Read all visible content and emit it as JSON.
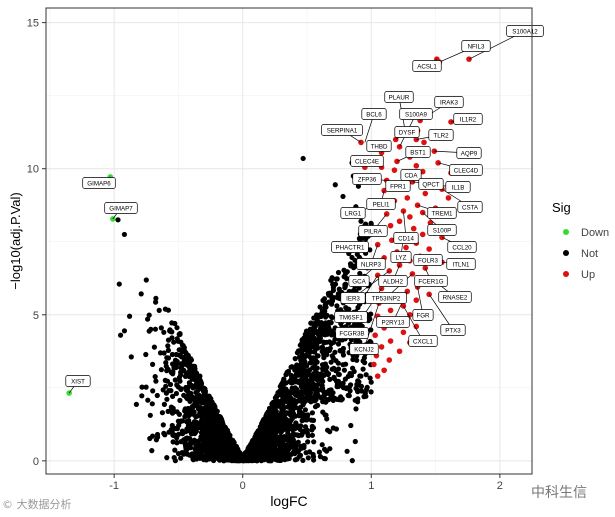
{
  "chart_data": {
    "type": "scatter",
    "title": "",
    "xlabel": "logFC",
    "ylabel": "−log10(adj.P.Val)",
    "xlim": [
      -1.53,
      2.25
    ],
    "ylim": [
      -0.45,
      15.5
    ],
    "x_ticks": [
      -1,
      0,
      1,
      2
    ],
    "x_tick_labels": [
      "-1",
      "0",
      "1",
      "2"
    ],
    "y_ticks": [
      0,
      5,
      10,
      15
    ],
    "y_tick_labels": [
      "0",
      "5",
      "10",
      "15"
    ],
    "grid": true,
    "legend": {
      "title": "Sig",
      "position": "right",
      "entries": [
        {
          "name": "Down",
          "color": "#33dd33"
        },
        {
          "name": "Not",
          "color": "#000000"
        },
        {
          "name": "Up",
          "color": "#dd1111"
        }
      ]
    },
    "series": [
      {
        "name": "Down",
        "color": "#33dd33",
        "points": [
          {
            "x": -1.03,
            "y": 9.72
          },
          {
            "x": -1.01,
            "y": 8.28
          },
          {
            "x": -1.35,
            "y": 2.32
          }
        ]
      },
      {
        "name": "Up",
        "color": "#dd1111",
        "points": [
          {
            "x": 1.51,
            "y": 13.75
          },
          {
            "x": 1.76,
            "y": 13.75
          },
          {
            "x": 1.53,
            "y": 13.65
          },
          {
            "x": 1.38,
            "y": 11.65
          },
          {
            "x": 1.62,
            "y": 11.6
          },
          {
            "x": 1.36,
            "y": 11.3
          },
          {
            "x": 1.27,
            "y": 11.15
          },
          {
            "x": 1.35,
            "y": 11.0
          },
          {
            "x": 1.41,
            "y": 10.9
          },
          {
            "x": 1.19,
            "y": 11.0
          },
          {
            "x": 0.92,
            "y": 10.9
          },
          {
            "x": 1.22,
            "y": 10.75
          },
          {
            "x": 1.49,
            "y": 10.6
          },
          {
            "x": 1.08,
            "y": 10.55
          },
          {
            "x": 1.3,
            "y": 10.4
          },
          {
            "x": 1.2,
            "y": 10.25
          },
          {
            "x": 1.35,
            "y": 10.1
          },
          {
            "x": 1.52,
            "y": 10.2
          },
          {
            "x": 1.08,
            "y": 10.05
          },
          {
            "x": 1.18,
            "y": 9.95
          },
          {
            "x": 0.95,
            "y": 10.05
          },
          {
            "x": 1.4,
            "y": 9.9
          },
          {
            "x": 1.62,
            "y": 9.85
          },
          {
            "x": 1.27,
            "y": 9.8
          },
          {
            "x": 1.12,
            "y": 9.6
          },
          {
            "x": 1.32,
            "y": 9.55
          },
          {
            "x": 1.2,
            "y": 9.4
          },
          {
            "x": 1.45,
            "y": 9.45
          },
          {
            "x": 1.55,
            "y": 9.3
          },
          {
            "x": 1.1,
            "y": 9.25
          },
          {
            "x": 1.42,
            "y": 9.15
          },
          {
            "x": 1.28,
            "y": 9.0
          },
          {
            "x": 1.6,
            "y": 9.0
          },
          {
            "x": 1.18,
            "y": 8.9
          },
          {
            "x": 1.36,
            "y": 8.75
          },
          {
            "x": 1.05,
            "y": 8.75
          },
          {
            "x": 1.5,
            "y": 8.65
          },
          {
            "x": 1.25,
            "y": 8.55
          },
          {
            "x": 1.4,
            "y": 8.5
          },
          {
            "x": 1.12,
            "y": 8.45
          },
          {
            "x": 1.3,
            "y": 8.35
          },
          {
            "x": 1.6,
            "y": 8.4
          },
          {
            "x": 1.22,
            "y": 8.2
          },
          {
            "x": 1.46,
            "y": 8.15
          },
          {
            "x": 1.15,
            "y": 8.05
          },
          {
            "x": 1.33,
            "y": 7.95
          },
          {
            "x": 1.08,
            "y": 7.85
          },
          {
            "x": 1.4,
            "y": 7.75
          },
          {
            "x": 1.25,
            "y": 7.7
          },
          {
            "x": 1.55,
            "y": 7.65
          },
          {
            "x": 1.16,
            "y": 7.55
          },
          {
            "x": 1.35,
            "y": 7.45
          },
          {
            "x": 1.05,
            "y": 7.4
          },
          {
            "x": 1.27,
            "y": 7.3
          },
          {
            "x": 1.45,
            "y": 7.25
          },
          {
            "x": 1.2,
            "y": 7.15
          },
          {
            "x": 1.38,
            "y": 7.0
          },
          {
            "x": 1.1,
            "y": 6.95
          },
          {
            "x": 1.3,
            "y": 6.85
          },
          {
            "x": 1.55,
            "y": 6.8
          },
          {
            "x": 1.22,
            "y": 6.7
          },
          {
            "x": 1.42,
            "y": 6.6
          },
          {
            "x": 1.14,
            "y": 6.5
          },
          {
            "x": 1.32,
            "y": 6.4
          },
          {
            "x": 1.05,
            "y": 6.35
          },
          {
            "x": 1.25,
            "y": 6.25
          },
          {
            "x": 1.48,
            "y": 6.2
          },
          {
            "x": 1.18,
            "y": 6.05
          },
          {
            "x": 1.36,
            "y": 5.95
          },
          {
            "x": 1.08,
            "y": 5.9
          },
          {
            "x": 1.28,
            "y": 5.8
          },
          {
            "x": 1.45,
            "y": 5.7
          },
          {
            "x": 1.16,
            "y": 5.6
          },
          {
            "x": 1.35,
            "y": 5.5
          },
          {
            "x": 1.06,
            "y": 5.4
          },
          {
            "x": 1.25,
            "y": 5.3
          },
          {
            "x": 1.15,
            "y": 5.15
          },
          {
            "x": 1.3,
            "y": 5.0
          },
          {
            "x": 1.05,
            "y": 4.95
          },
          {
            "x": 1.2,
            "y": 4.8
          },
          {
            "x": 1.35,
            "y": 4.6
          },
          {
            "x": 1.1,
            "y": 4.55
          },
          {
            "x": 1.25,
            "y": 4.4
          },
          {
            "x": 1.03,
            "y": 4.3
          },
          {
            "x": 1.15,
            "y": 4.1
          },
          {
            "x": 1.3,
            "y": 4.05
          },
          {
            "x": 1.08,
            "y": 3.9
          },
          {
            "x": 1.22,
            "y": 3.75
          },
          {
            "x": 1.04,
            "y": 3.6
          },
          {
            "x": 1.14,
            "y": 3.45
          },
          {
            "x": 1.02,
            "y": 3.3
          },
          {
            "x": 1.1,
            "y": 3.1
          },
          {
            "x": 1.05,
            "y": 2.9
          }
        ]
      },
      {
        "name": "Not",
        "color": "#000000",
        "points": [
          {
            "x": -0.97,
            "y": 8.25
          },
          {
            "x": -0.92,
            "y": 7.75
          },
          {
            "x": -0.96,
            "y": 6.05
          },
          {
            "x": -0.88,
            "y": 4.95
          },
          {
            "x": -0.92,
            "y": 4.45
          },
          {
            "x": -0.95,
            "y": 4.3
          },
          {
            "x": 0.47,
            "y": 10.35
          },
          {
            "x": 0.72,
            "y": 9.45
          },
          {
            "x": 0.85,
            "y": 10.2
          },
          {
            "x": 0.86,
            "y": 9.75
          },
          {
            "x": 0.9,
            "y": 9.4
          },
          {
            "x": 0.78,
            "y": 9.05
          },
          {
            "x": 0.88,
            "y": 8.7
          },
          {
            "x": 0.82,
            "y": 8.4
          },
          {
            "x": 0.92,
            "y": 8.2
          }
        ],
        "note_cloud": {
          "shape": "volcano",
          "x_range": [
            -0.95,
            1.0
          ],
          "y_range": [
            0,
            8.5
          ]
        }
      }
    ],
    "labels": [
      {
        "text": "S100A12",
        "x": 1.76,
        "y": 13.75
      },
      {
        "text": "NFIL3",
        "x": 1.53,
        "y": 13.65
      },
      {
        "text": "ACSL1",
        "x": 1.51,
        "y": 13.75
      },
      {
        "text": "PLAUR",
        "x": 1.27,
        "y": 11.15
      },
      {
        "text": "IRAK3",
        "x": 1.38,
        "y": 11.65
      },
      {
        "text": "BCL6",
        "x": 0.95,
        "y": 10.9
      },
      {
        "text": "S100A9",
        "x": 1.22,
        "y": 10.75
      },
      {
        "text": "IL1R2",
        "x": 1.62,
        "y": 11.6
      },
      {
        "text": "SERPINA1",
        "x": 0.92,
        "y": 10.9
      },
      {
        "text": "DYSF",
        "x": 1.19,
        "y": 11.0
      },
      {
        "text": "TLR2",
        "x": 1.35,
        "y": 11.0
      },
      {
        "text": "THBD",
        "x": 1.08,
        "y": 10.55
      },
      {
        "text": "BST1",
        "x": 1.2,
        "y": 10.25
      },
      {
        "text": "AQP9",
        "x": 1.49,
        "y": 10.6
      },
      {
        "text": "CLEC4E",
        "x": 1.08,
        "y": 10.05
      },
      {
        "text": "CLEC4D",
        "x": 1.52,
        "y": 10.2
      },
      {
        "text": "CDA",
        "x": 1.27,
        "y": 9.8
      },
      {
        "text": "ZFP36",
        "x": 1.12,
        "y": 9.6
      },
      {
        "text": "FPR1",
        "x": 1.2,
        "y": 9.4
      },
      {
        "text": "QPCT",
        "x": 1.32,
        "y": 9.55
      },
      {
        "text": "IL1B",
        "x": 1.45,
        "y": 9.45
      },
      {
        "text": "PELI1",
        "x": 1.1,
        "y": 9.25
      },
      {
        "text": "CSTA",
        "x": 1.55,
        "y": 9.3
      },
      {
        "text": "LRG1",
        "x": 1.05,
        "y": 8.75
      },
      {
        "text": "TREM1",
        "x": 1.36,
        "y": 8.75
      },
      {
        "text": "PILRA",
        "x": 1.12,
        "y": 8.45
      },
      {
        "text": "S100P",
        "x": 1.4,
        "y": 8.5
      },
      {
        "text": "CD14",
        "x": 1.25,
        "y": 8.55
      },
      {
        "text": "PHACTR1",
        "x": 1.08,
        "y": 7.85
      },
      {
        "text": "CCL20",
        "x": 1.55,
        "y": 7.65
      },
      {
        "text": "LYZ",
        "x": 1.25,
        "y": 7.7
      },
      {
        "text": "NLRP3",
        "x": 1.05,
        "y": 7.4
      },
      {
        "text": "FOLR3",
        "x": 1.38,
        "y": 7.0
      },
      {
        "text": "ITLN1",
        "x": 1.55,
        "y": 6.8
      },
      {
        "text": "GCA",
        "x": 1.1,
        "y": 6.95
      },
      {
        "text": "ALDH2",
        "x": 1.22,
        "y": 6.7
      },
      {
        "text": "FCER1G",
        "x": 1.42,
        "y": 6.6
      },
      {
        "text": "IER3",
        "x": 1.14,
        "y": 6.5
      },
      {
        "text": "TP53INP2",
        "x": 1.32,
        "y": 6.4
      },
      {
        "text": "RNASE2",
        "x": 1.48,
        "y": 6.2
      },
      {
        "text": "TM6SF1",
        "x": 1.05,
        "y": 6.35
      },
      {
        "text": "FGR",
        "x": 1.36,
        "y": 5.95
      },
      {
        "text": "FCGR3B",
        "x": 1.08,
        "y": 5.9
      },
      {
        "text": "P2RY13",
        "x": 1.28,
        "y": 5.8
      },
      {
        "text": "PTX3",
        "x": 1.45,
        "y": 5.7
      },
      {
        "text": "CXCL1",
        "x": 1.25,
        "y": 5.3
      },
      {
        "text": "KCNJ2",
        "x": 1.06,
        "y": 5.4
      },
      {
        "text": "GIMAP6",
        "x": -1.03,
        "y": 9.72
      },
      {
        "text": "GIMAP7",
        "x": -1.01,
        "y": 8.28
      },
      {
        "text": "XIST",
        "x": -1.35,
        "y": 2.32
      }
    ]
  },
  "watermarks": {
    "left": "© 大数据分析",
    "right": "中科生信"
  }
}
